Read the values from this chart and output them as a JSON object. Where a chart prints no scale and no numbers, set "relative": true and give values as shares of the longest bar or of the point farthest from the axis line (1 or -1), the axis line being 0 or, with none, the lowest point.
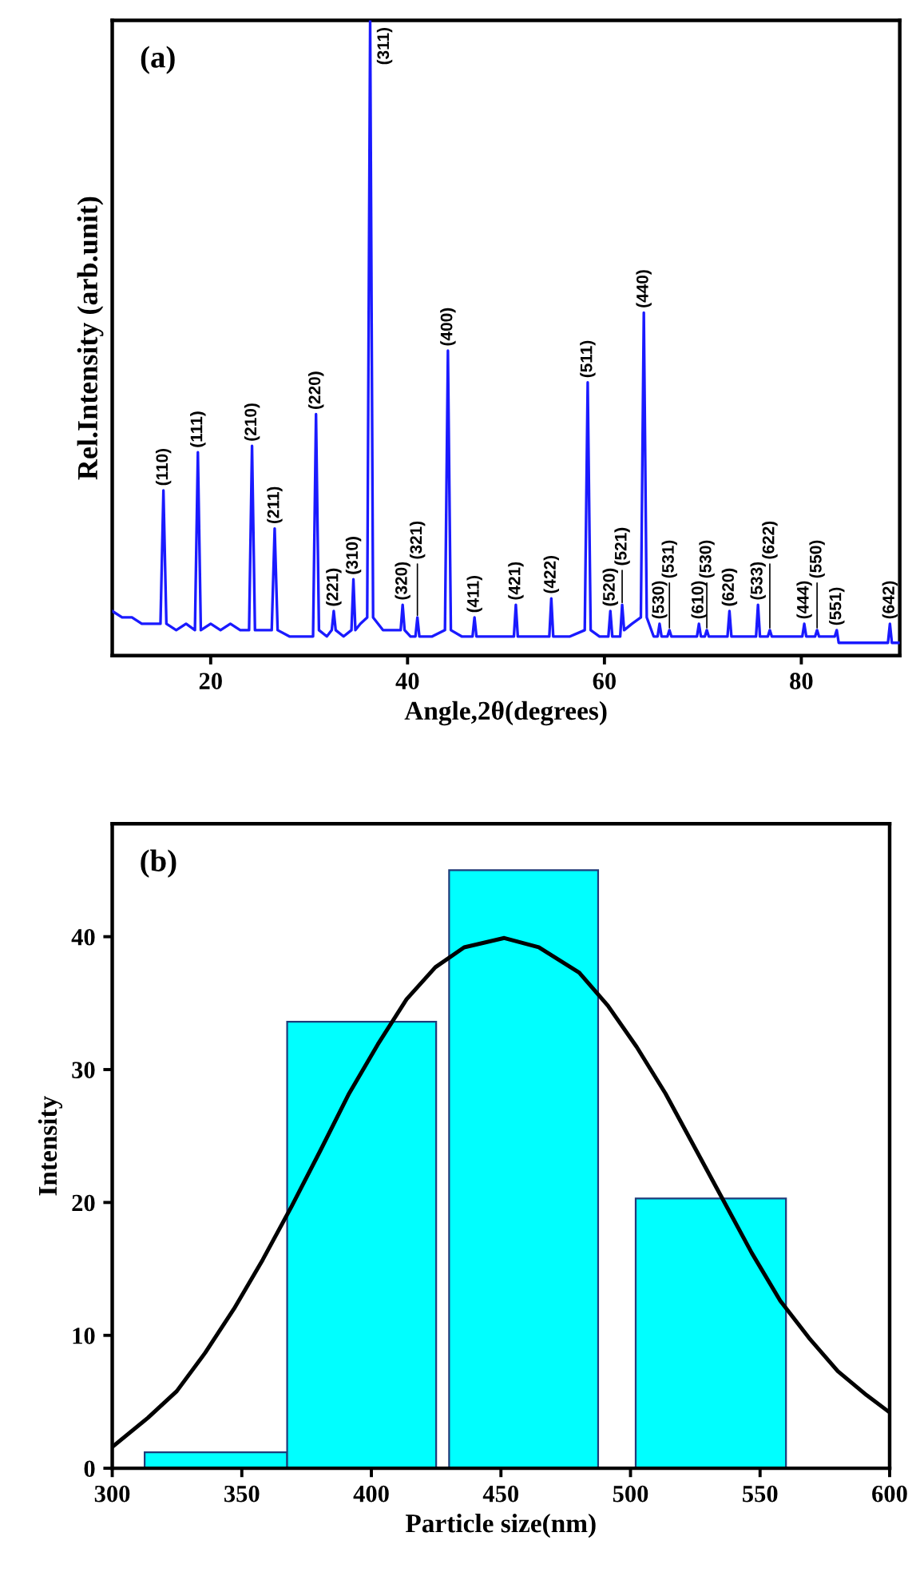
{
  "chart_data": [
    {
      "type": "line",
      "relative": true,
      "xlabel": "Angle,2θ(degrees)",
      "ylabel": "Rel.Intensity (arb.unit)",
      "xlim": [
        10,
        90
      ],
      "xticks": [
        20,
        40,
        60,
        80
      ],
      "grid": false,
      "legend": false,
      "series": [
        {
          "color": "#1a1aff",
          "x": [
            10,
            11,
            12,
            13,
            14,
            14.9,
            15.2,
            15.5,
            16.5,
            17.5,
            18.4,
            18.7,
            19.0,
            20,
            21,
            22,
            23,
            23.9,
            24.2,
            24.5,
            25.3,
            26.2,
            26.5,
            26.8,
            28,
            29.5,
            30.4,
            30.7,
            31.0,
            31.8,
            32.3,
            32.5,
            32.7,
            33.5,
            34.3,
            34.5,
            34.7,
            35.2,
            35.9,
            36.2,
            36.5,
            37.5,
            38.5,
            39.3,
            39.5,
            39.7,
            40.3,
            40.8,
            41.0,
            41.2,
            42.5,
            43.8,
            44.1,
            44.4,
            45.5,
            46.6,
            46.8,
            47.0,
            48.5,
            50.8,
            51.0,
            51.2,
            53,
            54.4,
            54.6,
            54.8,
            56.5,
            58.0,
            58.3,
            58.6,
            59.5,
            60.4,
            60.6,
            60.8,
            61.2,
            61.6,
            61.8,
            62.0,
            62.8,
            63.7,
            64.0,
            64.3,
            65.0,
            65.4,
            65.6,
            65.8,
            66.4,
            66.6,
            66.8,
            68,
            69.4,
            69.6,
            69.8,
            70.2,
            70.4,
            70.6,
            71.5,
            72.5,
            72.7,
            72.9,
            74.3,
            75.4,
            75.6,
            75.8,
            76.6,
            76.8,
            77.0,
            79.3,
            80.1,
            80.3,
            80.5,
            81.4,
            81.6,
            81.8,
            83.4,
            83.6,
            83.8,
            85,
            86.8,
            88.8,
            89.0,
            89.2,
            90
          ],
          "values": [
            0.07,
            0.06,
            0.06,
            0.05,
            0.05,
            0.05,
            0.26,
            0.05,
            0.04,
            0.05,
            0.04,
            0.32,
            0.04,
            0.05,
            0.04,
            0.05,
            0.04,
            0.04,
            0.33,
            0.04,
            0.04,
            0.04,
            0.2,
            0.04,
            0.03,
            0.03,
            0.03,
            0.38,
            0.04,
            0.03,
            0.04,
            0.07,
            0.04,
            0.03,
            0.04,
            0.12,
            0.04,
            0.05,
            0.06,
            1.0,
            0.06,
            0.04,
            0.04,
            0.04,
            0.08,
            0.04,
            0.03,
            0.03,
            0.06,
            0.03,
            0.03,
            0.04,
            0.48,
            0.04,
            0.03,
            0.03,
            0.06,
            0.03,
            0.03,
            0.03,
            0.08,
            0.03,
            0.03,
            0.03,
            0.09,
            0.03,
            0.03,
            0.04,
            0.43,
            0.04,
            0.03,
            0.03,
            0.07,
            0.03,
            0.03,
            0.03,
            0.08,
            0.04,
            0.05,
            0.06,
            0.54,
            0.06,
            0.03,
            0.03,
            0.05,
            0.03,
            0.03,
            0.04,
            0.03,
            0.03,
            0.03,
            0.05,
            0.03,
            0.03,
            0.04,
            0.03,
            0.03,
            0.03,
            0.07,
            0.03,
            0.03,
            0.03,
            0.08,
            0.03,
            0.03,
            0.04,
            0.03,
            0.03,
            0.03,
            0.05,
            0.03,
            0.03,
            0.04,
            0.03,
            0.03,
            0.04,
            0.02,
            0.02,
            0.02,
            0.02,
            0.05,
            0.02,
            0.02
          ]
        }
      ],
      "annotations": [
        "(a)",
        {
          "text": "(110)",
          "x": 15.2,
          "y": 0.26
        },
        {
          "text": "(111)",
          "x": 18.7,
          "y": 0.32
        },
        {
          "text": "(210)",
          "x": 24.2,
          "y": 0.33
        },
        {
          "text": "(211)",
          "x": 26.5,
          "y": 0.2
        },
        {
          "text": "(220)",
          "x": 30.7,
          "y": 0.38
        },
        {
          "text": "(221)",
          "x": 32.5,
          "y": 0.07
        },
        {
          "text": "(310)",
          "x": 34.5,
          "y": 0.12
        },
        {
          "text": "(311)",
          "x": 36.2,
          "y": 1.0
        },
        {
          "text": "(320)",
          "x": 39.5,
          "y": 0.08
        },
        {
          "text": "(321)",
          "x": 41.0,
          "y": 0.06
        },
        {
          "text": "(400)",
          "x": 44.1,
          "y": 0.48
        },
        {
          "text": "(411)",
          "x": 46.8,
          "y": 0.06
        },
        {
          "text": "(421)",
          "x": 51.0,
          "y": 0.08
        },
        {
          "text": "(422)",
          "x": 54.6,
          "y": 0.09
        },
        {
          "text": "(511)",
          "x": 58.3,
          "y": 0.43
        },
        {
          "text": "(520)",
          "x": 60.6,
          "y": 0.07
        },
        {
          "text": "(521)",
          "x": 61.8,
          "y": 0.08
        },
        {
          "text": "(440)",
          "x": 64.0,
          "y": 0.54
        },
        {
          "text": "(530)",
          "x": 65.6,
          "y": 0.05
        },
        {
          "text": "(531)",
          "x": 66.6,
          "y": 0.04
        },
        {
          "text": "(610)",
          "x": 69.6,
          "y": 0.05
        },
        {
          "text": "(530)",
          "x": 70.4,
          "y": 0.04
        },
        {
          "text": "(620)",
          "x": 72.7,
          "y": 0.07
        },
        {
          "text": "(533)",
          "x": 75.6,
          "y": 0.08
        },
        {
          "text": "(622)",
          "x": 76.8,
          "y": 0.04
        },
        {
          "text": "(444)",
          "x": 80.3,
          "y": 0.05
        },
        {
          "text": "(550)",
          "x": 81.6,
          "y": 0.04
        },
        {
          "text": "(551)",
          "x": 83.6,
          "y": 0.04
        },
        {
          "text": "(642)",
          "x": 89.0,
          "y": 0.05
        }
      ]
    },
    {
      "type": "histogram",
      "xlabel": "Particle size(nm)",
      "ylabel": "Intensity",
      "xlim": [
        300,
        600
      ],
      "xticks": [
        300,
        350,
        400,
        450,
        500,
        550,
        600
      ],
      "ylim": [
        0,
        48.5
      ],
      "yticks": [
        0,
        10,
        20,
        30,
        40
      ],
      "grid": false,
      "legend": false,
      "color": "#00ffff",
      "bins": [
        312.5,
        367.5,
        425,
        430,
        487.5,
        502,
        560
      ],
      "values": [
        1.2,
        33.6,
        null,
        45.0,
        null,
        20.3
      ],
      "series": [
        {
          "type": "line",
          "color": "#000000",
          "x": [
            300,
            313.8,
            324.9,
            335.9,
            347.0,
            358.1,
            369.2,
            380.3,
            391.4,
            402.5,
            413.6,
            424.7,
            435.8,
            451.3,
            464.6,
            480.2,
            491.3,
            502.4,
            513.5,
            524.6,
            535.7,
            546.8,
            557.8,
            568.9,
            580.0,
            591.1,
            600
          ],
          "values": [
            1.6,
            3.8,
            5.8,
            8.7,
            12.0,
            15.7,
            19.7,
            23.9,
            28.2,
            31.9,
            35.3,
            37.7,
            39.2,
            39.9,
            39.2,
            37.3,
            34.8,
            31.7,
            28.2,
            24.2,
            20.2,
            16.2,
            12.6,
            9.8,
            7.3,
            5.5,
            4.2
          ]
        }
      ],
      "annotations": [
        "(b)"
      ]
    }
  ]
}
